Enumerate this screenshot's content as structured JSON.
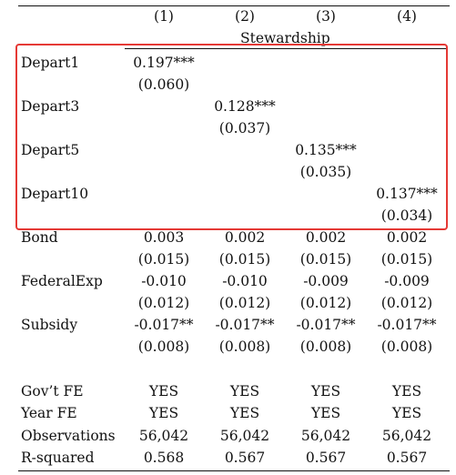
{
  "columns": [
    "(1)",
    "(2)",
    "(3)",
    "(4)"
  ],
  "dep_var": "Stewardship",
  "rows": [
    {
      "label": "Depart1",
      "coef": [
        "0.197***",
        "",
        "",
        ""
      ],
      "se": [
        "(0.060)",
        "",
        "",
        ""
      ]
    },
    {
      "label": "Depart3",
      "coef": [
        "",
        "0.128***",
        "",
        ""
      ],
      "se": [
        "",
        "(0.037)",
        "",
        ""
      ]
    },
    {
      "label": "Depart5",
      "coef": [
        "",
        "",
        "0.135***",
        ""
      ],
      "se": [
        "",
        "",
        "(0.035)",
        ""
      ]
    },
    {
      "label": "Depart10",
      "coef": [
        "",
        "",
        "",
        "0.137***"
      ],
      "se": [
        "",
        "",
        "",
        "(0.034)"
      ]
    },
    {
      "label": "Bond",
      "coef": [
        "0.003",
        "0.002",
        "0.002",
        "0.002"
      ],
      "se": [
        "(0.015)",
        "(0.015)",
        "(0.015)",
        "(0.015)"
      ]
    },
    {
      "label": "FederalExp",
      "coef": [
        "-0.010",
        "-0.010",
        "-0.009",
        "-0.009"
      ],
      "se": [
        "(0.012)",
        "(0.012)",
        "(0.012)",
        "(0.012)"
      ]
    },
    {
      "label": "Subsidy",
      "coef": [
        "-0.017**",
        "-0.017**",
        "-0.017**",
        "-0.017**"
      ],
      "se": [
        "(0.008)",
        "(0.008)",
        "(0.008)",
        "(0.008)"
      ]
    }
  ],
  "footer": [
    {
      "label": "Gov’t FE",
      "vals": [
        "YES",
        "YES",
        "YES",
        "YES"
      ]
    },
    {
      "label": "Year FE",
      "vals": [
        "YES",
        "YES",
        "YES",
        "YES"
      ]
    },
    {
      "label": "Observations",
      "vals": [
        "56,042",
        "56,042",
        "56,042",
        "56,042"
      ]
    },
    {
      "label": "R-squared",
      "vals": [
        "0.568",
        "0.567",
        "0.567",
        "0.567"
      ]
    }
  ],
  "highlight_color": "#e53935"
}
